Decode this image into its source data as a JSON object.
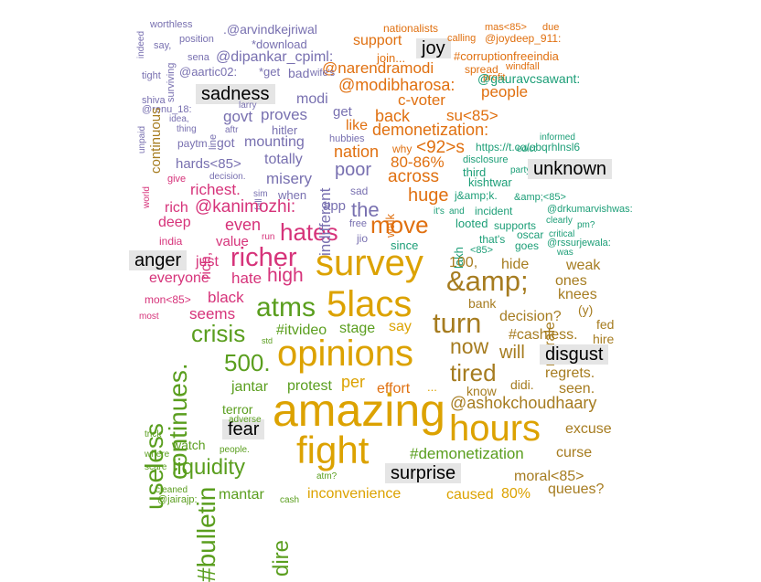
{
  "palette": {
    "anger": "#d6337a",
    "disgust": "#a67c20",
    "fear": "#5a9e1e",
    "joy": "#dca200",
    "sadness": "#7870b0",
    "surprise": "#d4a900",
    "unknown": "#1c9e77",
    "orange": "#e07010"
  },
  "labels": [
    "joy",
    "sadness",
    "unknown",
    "anger",
    "disgust",
    "fear",
    "surprise"
  ],
  "words": [
    "worthless",
    "indeed",
    "position",
    "say,",
    "sena",
    "tight",
    "surviving",
    "shiva",
    "@renu_18:",
    "idea,",
    "unpaid",
    "thing",
    "line",
    "paytm",
    "continuous",
    "world",
    "give",
    "decision.",
    "fall",
    "sim",
    "hards<85>",
    "richest.",
    "rich",
    "@kanimozhi:",
    "deep",
    "india",
    "rich,",
    "run",
    "even",
    "value",
    "hates",
    "the",
    "app",
    "sad",
    "free",
    "jio",
    "move",
    "since",
    "lakh",
    "it's",
    "and",
    "looted",
    "that's",
    "<85>",
    "incident",
    "supports",
    "oscar",
    "goes",
    "critical",
    "clearly",
    "@rssurjewala:",
    "pm?",
    "was",
    "@drkumarvishwas:",
    "&amp;<85>",
    "kishtwar",
    "third",
    "disclosure",
    "j&amp;k.",
    "party",
    "question:",
    "edict",
    "informed",
    "https://t.co/obqrhlnsl6",
    "walk",
    "why",
    "huge",
    "across",
    "80-86%",
    "<92>s",
    "nation",
    "like",
    "hubbies",
    "back",
    "demonetization:",
    "su<85>",
    "c-voter",
    "@modibharosa:",
    "people",
    "@narendramodi",
    "#corruptionfreeindia",
    "profit",
    "windfall",
    "spread",
    "@gauravcsawant:",
    "support",
    "joy",
    "join...",
    "calling",
    "@joydeep_911:",
    "mas<85>",
    "due",
    "nationalists",
    ".@arvindkejriwal",
    "*download",
    "@dipankar_cpiml:",
    "@aartic02:",
    "*get",
    "bad",
    "wife's",
    "modi",
    "sadness",
    "larry",
    "aftr",
    "govt",
    "proves",
    "get",
    "hitler",
    "mounting",
    "got",
    "totally",
    "misery",
    "indifferent",
    "poor",
    "when",
    "unknown",
    "survey",
    "richer",
    "anger",
    "just",
    "everyone",
    "hate",
    "high",
    "atms",
    "5lacs",
    "&amp;",
    "100,",
    "hide",
    "weak",
    "ones",
    "morale",
    "knees",
    "bank",
    "decision?",
    "(y)",
    "fed",
    "hire",
    "turn",
    "now",
    "will",
    "disgust",
    "#cashless.",
    "regrets.",
    "seen.",
    "tired",
    "didi.",
    "know",
    "...",
    "effort",
    "say",
    "per",
    "stage",
    "#itvideo",
    "opinions",
    "crisis",
    "500.",
    "jantar",
    "protest",
    "amazing",
    "fight",
    "hours",
    "@ashokchoudhaary",
    "excuse",
    "curse",
    "#demonetization",
    "surprise",
    "moral<85>",
    "queues?",
    "caused",
    "80%",
    "inconvenience",
    "mantar",
    "cash",
    "atm?",
    "dire",
    "liquidity",
    "#bulletin",
    "continues.",
    "useless",
    "fear",
    "watch",
    "where",
    "trick",
    "scare",
    "cleaned",
    "@jairajp:",
    "people.",
    "adverse",
    "terror",
    "std",
    "mon<85>",
    "most",
    "seems",
    "black"
  ]
}
